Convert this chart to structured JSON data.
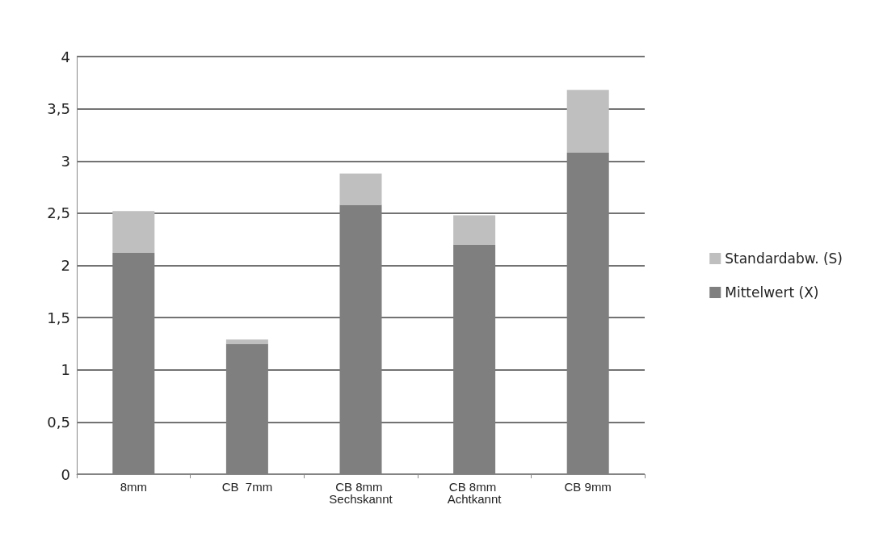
{
  "chart_data": {
    "type": "bar",
    "stacked": true,
    "categories": [
      "8mm",
      "CB  7mm",
      "CB 8mm Sechskannt",
      "CB 8mm Achtkannt",
      "CB 9mm"
    ],
    "series": [
      {
        "name": "Mittelwert (X)",
        "color": "#7f7f7f",
        "values": [
          2.12,
          1.25,
          2.58,
          2.2,
          3.08
        ]
      },
      {
        "name": "Standardabw. (S)",
        "color": "#bfbfbf",
        "values": [
          0.4,
          0.04,
          0.3,
          0.28,
          0.6
        ]
      }
    ],
    "ylim": [
      0,
      4
    ],
    "yticks": [
      0,
      {
        "value": 0.5,
        "label": "0,5"
      },
      1,
      {
        "value": 1.5,
        "label": "1,5"
      },
      2,
      {
        "value": 2.5,
        "label": "2,5"
      },
      3,
      {
        "value": 3.5,
        "label": "3,5"
      },
      4
    ],
    "grid": true,
    "legend": "right"
  }
}
